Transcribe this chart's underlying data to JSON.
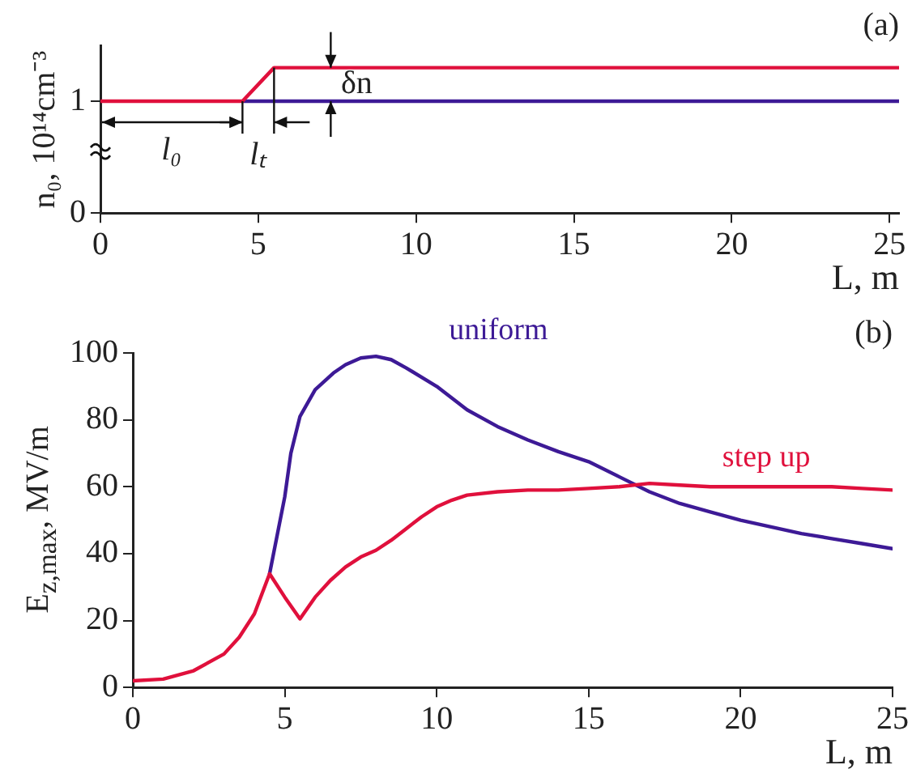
{
  "chart_data": [
    {
      "type": "line",
      "ylabel": "n₀, 10¹⁴cm⁻³",
      "xlabel": "L, m",
      "xlim": [
        0,
        25.3
      ],
      "xticks": [
        0,
        5,
        10,
        15,
        20,
        25
      ],
      "ylim": [
        0,
        1.5
      ],
      "yticks": [
        0,
        1
      ],
      "annotations": [
        "(a)",
        {
          "text": "l₀",
          "x": 2.25,
          "y": 1
        },
        {
          "text": "lₜ",
          "x": 5,
          "y": 1.15
        },
        "δn"
      ],
      "series": [
        {
          "color": "#3d1a96",
          "x": [
            4.5,
            25.3
          ],
          "values": [
            1,
            1
          ]
        },
        {
          "color": "#e0103c",
          "x": [
            0,
            4.5,
            5.5,
            25.3
          ],
          "values": [
            1,
            1,
            1.3,
            1.3
          ]
        }
      ]
    },
    {
      "type": "line",
      "ylabel": "E$_{z,max}$, MV/m",
      "xlabel": "L, m",
      "xlim": [
        0,
        25
      ],
      "xticks": [
        0,
        5,
        10,
        15,
        20,
        25
      ],
      "ylim": [
        0,
        100
      ],
      "yticks": [
        0,
        20,
        40,
        60,
        80,
        100
      ],
      "annotations": [
        "(b)"
      ],
      "series": [
        {
          "name": "uniform",
          "color": "#3d1a96",
          "x": [
            4.5,
            5,
            5.2,
            5.5,
            6,
            6.6,
            7,
            7.5,
            8,
            8.5,
            9,
            10,
            11,
            12,
            13,
            14,
            15,
            16,
            17,
            18,
            19,
            20,
            21,
            22,
            23,
            24,
            25
          ],
          "values": [
            34,
            57,
            70,
            81,
            89,
            94,
            96.5,
            98.5,
            99,
            98,
            95.5,
            90,
            83,
            78,
            74,
            70.5,
            67.5,
            63,
            58.5,
            55,
            52.5,
            50,
            48,
            46,
            44.5,
            43,
            41.5
          ]
        },
        {
          "name": "step up",
          "color": "#e0103c",
          "x": [
            0,
            1,
            2,
            3,
            3.5,
            4,
            4.5,
            5,
            5.5,
            6,
            6.5,
            7,
            7.5,
            8,
            8.5,
            9,
            9.5,
            10,
            10.5,
            11,
            12,
            13,
            14,
            15,
            16,
            17,
            18,
            19,
            20,
            21,
            22,
            23,
            24,
            25
          ],
          "values": [
            2,
            2.5,
            5,
            10,
            15,
            22,
            34,
            27,
            20.5,
            27,
            32,
            36,
            39,
            41,
            44,
            47.5,
            51,
            54,
            56,
            57.5,
            58.5,
            59,
            59,
            59.5,
            60,
            61,
            60.5,
            60,
            60,
            60,
            60,
            60,
            59.5,
            59
          ]
        }
      ]
    }
  ]
}
